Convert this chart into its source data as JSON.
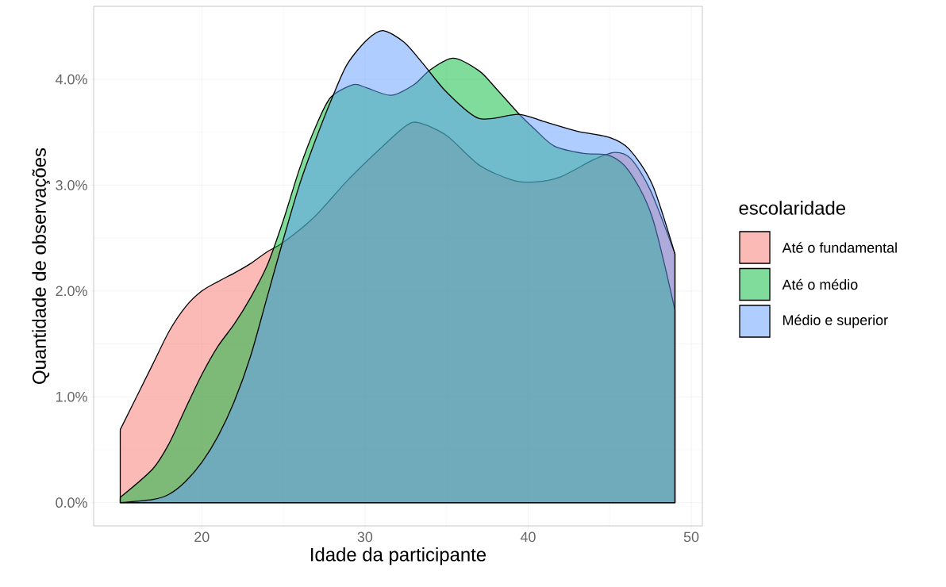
{
  "chart_data": {
    "type": "area",
    "xlabel": "Idade da participante",
    "ylabel": "Quantidade de observações",
    "legend_title": "escolaridade",
    "legend": "right",
    "grid": true,
    "xlim": [
      13.37,
      50.68
    ],
    "ylim": [
      -0.22,
      4.69
    ],
    "xticks": [
      20,
      30,
      40,
      50
    ],
    "yticks": [
      {
        "value": 0,
        "label": "0.0%"
      },
      {
        "value": 1,
        "label": "1.0%"
      },
      {
        "value": 2,
        "label": "2.0%"
      },
      {
        "value": 3,
        "label": "3.0%"
      },
      {
        "value": 4,
        "label": "4.0%"
      }
    ],
    "series": [
      {
        "name": "Até o fundamental",
        "color": "#F8766D",
        "x": [
          15,
          17,
          18,
          19,
          20,
          21,
          22,
          23,
          24,
          25,
          26.9,
          28.9,
          30.9,
          32.5,
          33.3,
          35,
          37,
          39,
          40.4,
          42,
          44,
          45.3,
          46.3,
          47.5,
          49
        ],
        "values": [
          0.69,
          1.31,
          1.62,
          1.85,
          2.0,
          2.09,
          2.17,
          2.26,
          2.37,
          2.46,
          2.7,
          3.04,
          3.34,
          3.56,
          3.59,
          3.47,
          3.19,
          3.05,
          3.03,
          3.08,
          3.24,
          3.31,
          3.25,
          2.95,
          2.35
        ]
      },
      {
        "name": "Até o médio",
        "color": "#00BA38",
        "x": [
          15,
          17,
          18,
          19,
          20,
          21,
          22,
          23,
          24,
          25,
          26,
          27,
          27.9,
          29.3,
          30.1,
          31.6,
          33,
          34,
          35.4,
          37,
          38,
          39.4,
          40.4,
          41.6,
          43.4,
          45,
          46.2,
          47.6,
          49
        ],
        "values": [
          0.05,
          0.32,
          0.56,
          0.89,
          1.21,
          1.48,
          1.69,
          1.94,
          2.24,
          2.67,
          3.16,
          3.56,
          3.83,
          3.95,
          3.92,
          3.85,
          3.95,
          4.09,
          4.2,
          4.08,
          3.92,
          3.68,
          3.53,
          3.37,
          3.3,
          3.28,
          3.13,
          2.7,
          1.82
        ]
      },
      {
        "name": "Médio e superior",
        "color": "#619CFF",
        "x": [
          15,
          17,
          18,
          19,
          20,
          21,
          22,
          23,
          24,
          25,
          26,
          27,
          28,
          28.9,
          30.1,
          31.1,
          32.4,
          33.6,
          35,
          37,
          39.4,
          41,
          43,
          45,
          46.2,
          47.6,
          49
        ],
        "values": [
          0.0,
          0.03,
          0.08,
          0.2,
          0.38,
          0.63,
          0.96,
          1.39,
          1.94,
          2.49,
          3.01,
          3.44,
          3.83,
          4.14,
          4.37,
          4.46,
          4.35,
          4.14,
          3.88,
          3.63,
          3.67,
          3.6,
          3.51,
          3.45,
          3.34,
          3.01,
          2.35
        ]
      }
    ]
  }
}
